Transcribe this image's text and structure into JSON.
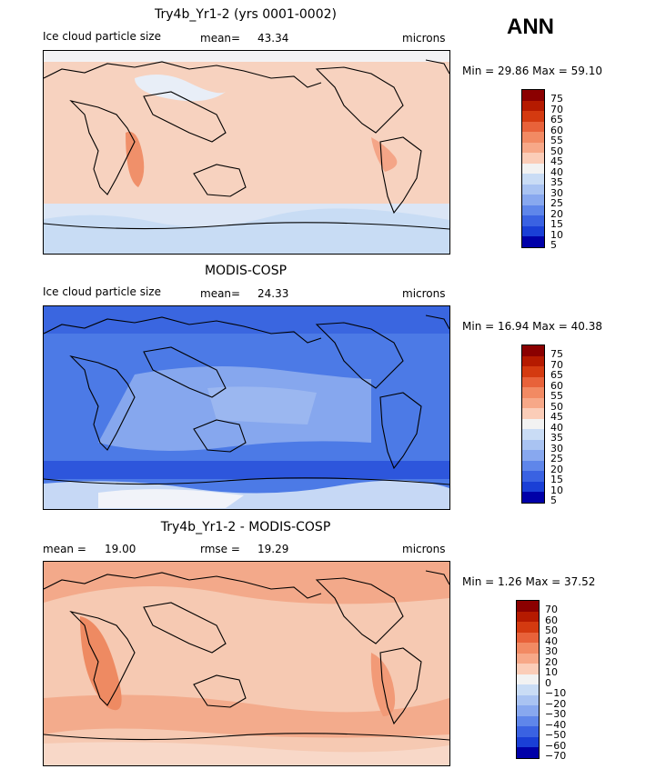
{
  "season": "ANN",
  "panels": [
    {
      "title": "Try4b_Yr1-2 (yrs 0001-0002)",
      "left_label": "Ice cloud particle size",
      "mid_label": "mean=",
      "mid_value": "43.34",
      "right_label": "microns",
      "stats": "Min =   29.86 Max =   59.10",
      "base_color": "#f6cdb7",
      "colorbar": [
        "75",
        "70",
        "65",
        "60",
        "55",
        "50",
        "45",
        "40",
        "35",
        "30",
        "25",
        "20",
        "15",
        "10",
        "5"
      ]
    },
    {
      "title": "MODIS-COSP",
      "left_label": "Ice cloud particle size",
      "mid_label": "mean=",
      "mid_value": "24.33",
      "right_label": "microns",
      "stats": "Min =   16.94 Max =   40.38",
      "base_color": "#4d7be8",
      "colorbar": [
        "75",
        "70",
        "65",
        "60",
        "55",
        "50",
        "45",
        "40",
        "35",
        "30",
        "25",
        "20",
        "15",
        "10",
        "5"
      ]
    },
    {
      "title": "Try4b_Yr1-2 - MODIS-COSP",
      "left_label": "mean =",
      "left_value": "19.00",
      "mid_label": "rmse =",
      "mid_value": "19.29",
      "right_label": "microns",
      "stats": "Min =    1.26 Max =   37.52",
      "base_color": "#f5c4ad",
      "colorbar": [
        "70",
        "60",
        "50",
        "40",
        "30",
        "20",
        "10",
        "0",
        "−10",
        "−20",
        "−30",
        "−40",
        "−50",
        "−60",
        "−70"
      ]
    }
  ],
  "colors": {
    "scale": [
      "#8b0000",
      "#b51a00",
      "#d43a10",
      "#e8623a",
      "#f28a63",
      "#f7a888",
      "#fbcdb8",
      "#f2f2f2",
      "#c9dcf5",
      "#a9c3f2",
      "#88a8ef",
      "#5f86ea",
      "#3a62e2",
      "#1a3fd6",
      "#0000a8"
    ]
  }
}
